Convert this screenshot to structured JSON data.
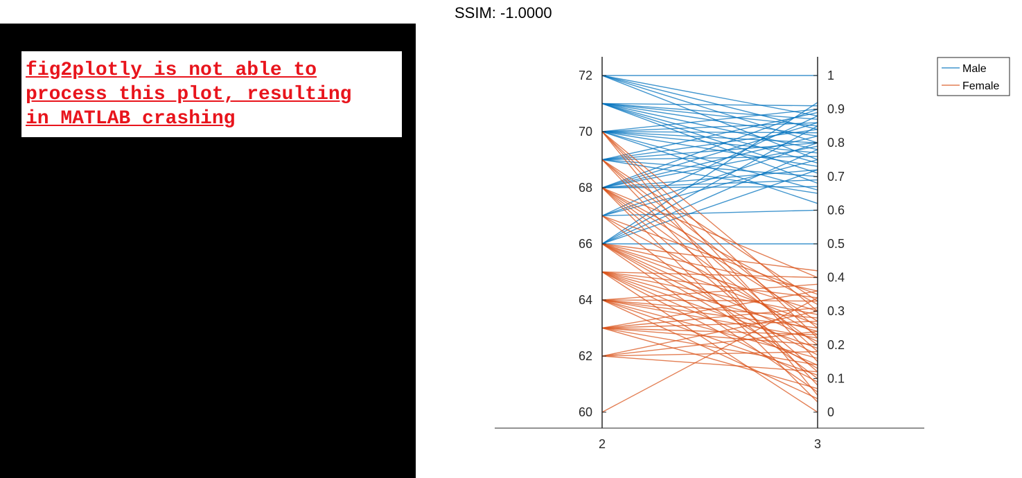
{
  "title": "SSIM: -1.0000",
  "error_message": {
    "lines": [
      "fig2plotly is not able to",
      "process this plot, resulting",
      "in MATLAB crashing"
    ]
  },
  "chart_data": {
    "type": "line",
    "subtype": "parallel-coordinates",
    "x": [
      2,
      3
    ],
    "x_ticks": [
      "2",
      "3"
    ],
    "left_axis": {
      "ylim": [
        60,
        72
      ],
      "ticks": [
        60,
        62,
        64,
        66,
        68,
        70,
        72
      ]
    },
    "right_axis": {
      "ylim": [
        0,
        1
      ],
      "ticks": [
        0,
        0.1,
        0.2,
        0.3,
        0.4,
        0.5,
        0.6,
        0.7,
        0.8,
        0.9,
        1
      ],
      "tick_labels": [
        "0",
        "0.1",
        "0.2",
        "0.3",
        "0.4",
        "0.5",
        "0.6",
        "0.7",
        "0.8",
        "0.9",
        "1"
      ]
    },
    "legend": {
      "position": "top-right",
      "entries": [
        "Male",
        "Female"
      ]
    },
    "grid": false,
    "series": [
      {
        "name": "Male",
        "color": "#0072BD",
        "lines": [
          [
            72,
            1.0
          ],
          [
            72,
            0.88
          ],
          [
            72,
            0.84
          ],
          [
            72,
            0.8
          ],
          [
            72,
            0.75
          ],
          [
            71,
            0.91
          ],
          [
            71,
            0.87
          ],
          [
            71,
            0.85
          ],
          [
            71,
            0.82
          ],
          [
            71,
            0.78
          ],
          [
            71,
            0.74
          ],
          [
            71,
            0.71
          ],
          [
            71,
            0.68
          ],
          [
            70,
            0.9
          ],
          [
            70,
            0.86
          ],
          [
            70,
            0.83
          ],
          [
            70,
            0.8
          ],
          [
            70,
            0.77
          ],
          [
            70,
            0.73
          ],
          [
            70,
            0.66
          ],
          [
            70,
            0.62
          ],
          [
            69,
            0.89
          ],
          [
            69,
            0.84
          ],
          [
            69,
            0.8
          ],
          [
            69,
            0.76
          ],
          [
            69,
            0.7
          ],
          [
            69,
            0.65
          ],
          [
            68,
            0.9
          ],
          [
            68,
            0.86
          ],
          [
            68,
            0.82
          ],
          [
            68,
            0.79
          ],
          [
            68,
            0.72
          ],
          [
            68,
            0.69
          ],
          [
            68,
            0.67
          ],
          [
            67,
            0.88
          ],
          [
            67,
            0.8
          ],
          [
            67,
            0.75
          ],
          [
            67,
            0.6
          ],
          [
            66,
            0.92
          ],
          [
            66,
            0.85
          ],
          [
            66,
            0.78
          ],
          [
            66,
            0.72
          ],
          [
            66,
            0.5
          ]
        ]
      },
      {
        "name": "Female",
        "color": "#D95319",
        "lines": [
          [
            70,
            0.3
          ],
          [
            70,
            0.22
          ],
          [
            70,
            0.15
          ],
          [
            70,
            0.05
          ],
          [
            69,
            0.33
          ],
          [
            69,
            0.25
          ],
          [
            69,
            0.18
          ],
          [
            69,
            0.08
          ],
          [
            68,
            0.4
          ],
          [
            68,
            0.32
          ],
          [
            68,
            0.27
          ],
          [
            68,
            0.2
          ],
          [
            68,
            0.12
          ],
          [
            68,
            0.03
          ],
          [
            67,
            0.35
          ],
          [
            67,
            0.23
          ],
          [
            67,
            0.1
          ],
          [
            66,
            0.42
          ],
          [
            66,
            0.36
          ],
          [
            66,
            0.3
          ],
          [
            66,
            0.26
          ],
          [
            66,
            0.21
          ],
          [
            66,
            0.17
          ],
          [
            66,
            0.13
          ],
          [
            66,
            0.06
          ],
          [
            65,
            0.4
          ],
          [
            65,
            0.34
          ],
          [
            65,
            0.29
          ],
          [
            65,
            0.24
          ],
          [
            65,
            0.19
          ],
          [
            65,
            0.14
          ],
          [
            65,
            0.09
          ],
          [
            65,
            0.0
          ],
          [
            64,
            0.38
          ],
          [
            64,
            0.33
          ],
          [
            64,
            0.28
          ],
          [
            64,
            0.25
          ],
          [
            64,
            0.22
          ],
          [
            64,
            0.16
          ],
          [
            64,
            0.11
          ],
          [
            64,
            0.04
          ],
          [
            63,
            0.36
          ],
          [
            63,
            0.31
          ],
          [
            63,
            0.27
          ],
          [
            63,
            0.23
          ],
          [
            63,
            0.2
          ],
          [
            63,
            0.14
          ],
          [
            63,
            0.07
          ],
          [
            62,
            0.3
          ],
          [
            62,
            0.24
          ],
          [
            62,
            0.18
          ],
          [
            62,
            0.12
          ],
          [
            60,
            0.34
          ]
        ]
      }
    ]
  }
}
